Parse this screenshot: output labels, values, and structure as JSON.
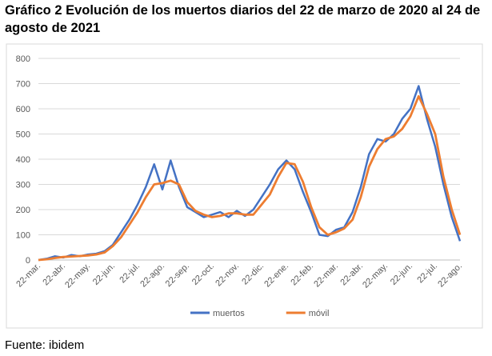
{
  "chart_data": {
    "type": "line",
    "title": "Gráfico 2 Evolución de los muertos diarios del 22 de marzo de 2020 al 24 de agosto de 2021",
    "source": "Fuente: ibidem",
    "categories": [
      "22-mar.",
      null,
      null,
      "22-abr.",
      null,
      null,
      "22-may.",
      null,
      null,
      "22-jun.",
      null,
      null,
      "22-jul.",
      null,
      null,
      "22-ago.",
      null,
      null,
      "22-sep.",
      null,
      null,
      "22-oct.",
      null,
      null,
      "22-nov.",
      null,
      null,
      "22-dic.",
      null,
      null,
      "22-ene.",
      null,
      null,
      "22-feb.",
      null,
      null,
      "22-mar.",
      null,
      null,
      "22-abr.",
      null,
      null,
      "22-may.",
      null,
      null,
      "22-jun.",
      null,
      null,
      "22-jul.",
      null,
      null,
      "22-ago."
    ],
    "series": [
      {
        "name": "muertos",
        "color": "#4472c4",
        "values": [
          0,
          5,
          15,
          10,
          20,
          15,
          22,
          25,
          35,
          60,
          110,
          160,
          220,
          290,
          380,
          280,
          395,
          290,
          210,
          190,
          170,
          180,
          190,
          170,
          195,
          175,
          200,
          250,
          300,
          360,
          395,
          360,
          270,
          190,
          100,
          95,
          120,
          130,
          190,
          290,
          420,
          480,
          470,
          500,
          560,
          600,
          690,
          560,
          450,
          300,
          170,
          75
        ]
      },
      {
        "name": "móvil",
        "color": "#ed7d31",
        "values": [
          0,
          3,
          8,
          12,
          14,
          16,
          18,
          22,
          30,
          55,
          90,
          140,
          190,
          250,
          300,
          305,
          315,
          300,
          230,
          195,
          180,
          170,
          175,
          185,
          185,
          180,
          180,
          220,
          260,
          330,
          385,
          380,
          310,
          210,
          130,
          100,
          110,
          125,
          160,
          250,
          370,
          440,
          480,
          490,
          520,
          570,
          650,
          580,
          500,
          330,
          200,
          100
        ]
      }
    ],
    "ylim": [
      0,
      800
    ],
    "yticks": [
      0,
      100,
      200,
      300,
      400,
      500,
      600,
      700,
      800
    ],
    "grid": true,
    "legend": "bottom"
  }
}
